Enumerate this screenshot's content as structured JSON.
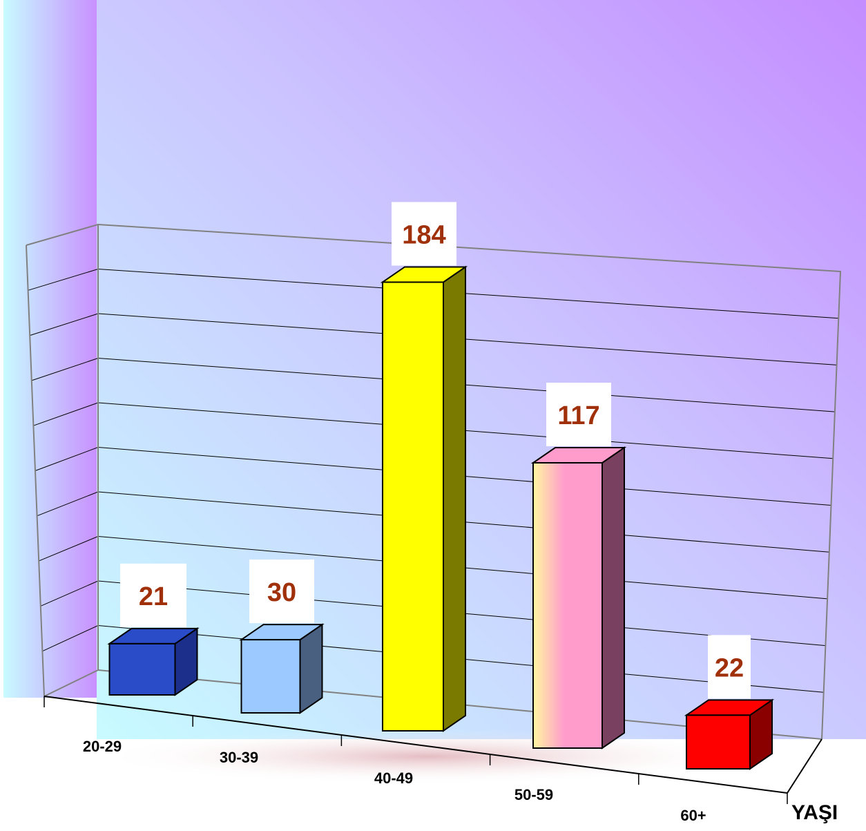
{
  "chart_data": {
    "type": "bar",
    "categories": [
      "20-29",
      "30-39",
      "40-49",
      "50-59",
      "60+"
    ],
    "values": [
      21,
      30,
      184,
      117,
      22
    ],
    "xlabel": "YAŞI",
    "ylabel": "",
    "ylim": [
      0,
      200
    ],
    "grid": true,
    "legend": "none",
    "colors": {
      "bars": [
        "#2a4cc8",
        "#9cc9ff",
        "#ffff00",
        "#ff9ccc",
        "#ff0000"
      ],
      "label_text": "#a0300a",
      "wall_top": "#c890ff",
      "wall_bottom": "#c8fbff"
    }
  }
}
